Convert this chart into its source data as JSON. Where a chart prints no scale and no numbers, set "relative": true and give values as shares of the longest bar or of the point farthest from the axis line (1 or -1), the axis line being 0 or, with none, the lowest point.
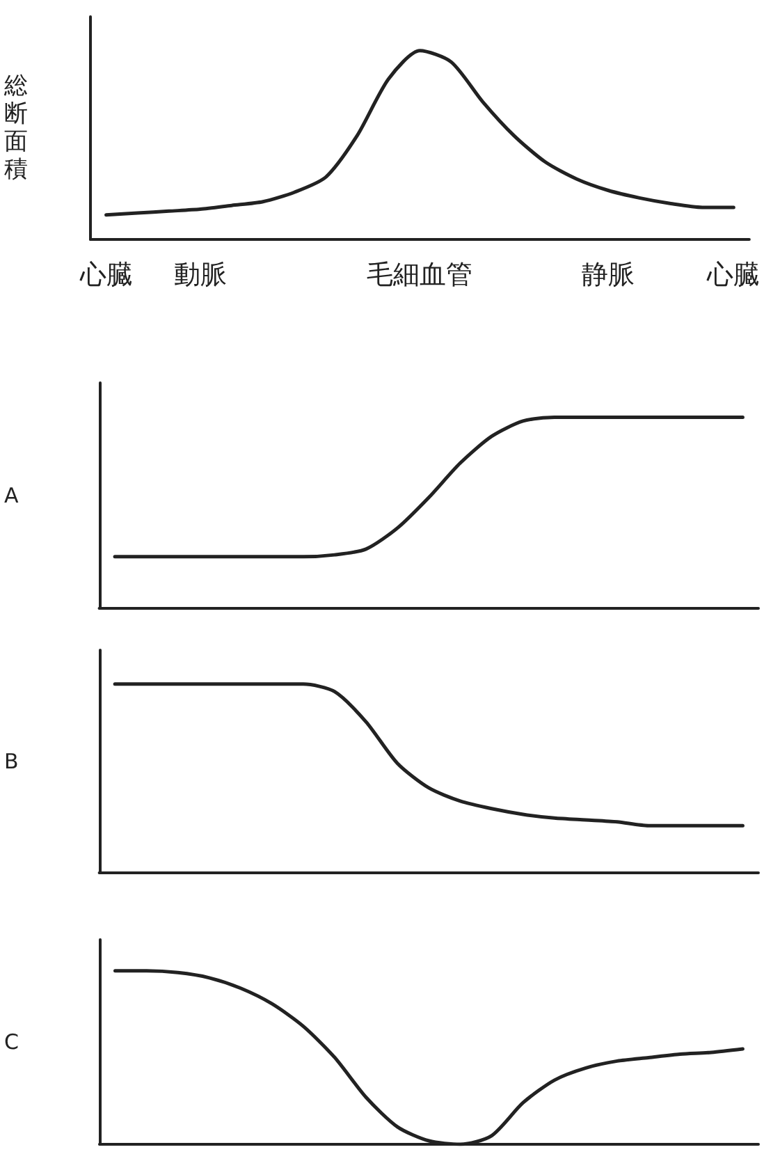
{
  "chart_data": [
    {
      "type": "line",
      "ylabel": "総断面積",
      "relative": true,
      "tick_labels": "x",
      "marker": "none",
      "line_style": "solid",
      "grid": false,
      "categories": [
        "心臓",
        null,
        null,
        "動脈",
        null,
        null,
        null,
        null,
        null,
        null,
        "毛細血管",
        null,
        null,
        null,
        null,
        null,
        "静脈",
        null,
        null,
        null,
        "心臓"
      ],
      "series": [
        {
          "color": "#222222",
          "values": [
            0.13,
            0.14,
            0.15,
            0.16,
            0.18,
            0.2,
            0.25,
            0.33,
            0.55,
            0.85,
            1,
            0.94,
            0.73,
            0.55,
            0.41,
            0.32,
            0.26,
            0.22,
            0.19,
            0.17,
            0.17
          ]
        }
      ]
    },
    {
      "type": "line",
      "ylabel": "A",
      "relative": true,
      "tick_labels": false,
      "marker": "none",
      "line_style": "solid",
      "grid": false,
      "categories": [
        null,
        null,
        null,
        null,
        null,
        null,
        null,
        null,
        null,
        null,
        null,
        null,
        null,
        null,
        null,
        null,
        null,
        null,
        null,
        null,
        null
      ],
      "series": [
        {
          "color": "#222222",
          "values": [
            0.27,
            0.27,
            0.27,
            0.27,
            0.27,
            0.27,
            0.27,
            0.28,
            0.31,
            0.42,
            0.58,
            0.76,
            0.9,
            0.98,
            1,
            1,
            1,
            1,
            1,
            1,
            1
          ]
        }
      ]
    },
    {
      "type": "line",
      "ylabel": "B",
      "relative": true,
      "tick_labels": false,
      "marker": "none",
      "line_style": "solid",
      "grid": false,
      "categories": [
        null,
        null,
        null,
        null,
        null,
        null,
        null,
        null,
        null,
        null,
        null,
        null,
        null,
        null,
        null,
        null,
        null,
        null,
        null,
        null,
        null
      ],
      "series": [
        {
          "color": "#222222",
          "values": [
            1,
            1,
            1,
            1,
            1,
            1,
            1,
            0.96,
            0.8,
            0.58,
            0.45,
            0.38,
            0.34,
            0.31,
            0.29,
            0.28,
            0.27,
            0.25,
            0.25,
            0.25,
            0.25
          ]
        }
      ]
    },
    {
      "type": "line",
      "ylabel": "C",
      "relative": true,
      "tick_labels": false,
      "marker": "none",
      "line_style": "solid",
      "grid": false,
      "categories": [
        null,
        null,
        null,
        null,
        null,
        null,
        null,
        null,
        null,
        null,
        null,
        null,
        null,
        null,
        null,
        null,
        null,
        null,
        null,
        null,
        null
      ],
      "series": [
        {
          "color": "#222222",
          "values": [
            1,
            1,
            0.99,
            0.96,
            0.9,
            0.81,
            0.68,
            0.5,
            0.27,
            0.1,
            0.02,
            0,
            0.05,
            0.24,
            0.37,
            0.44,
            0.48,
            0.5,
            0.52,
            0.53,
            0.55
          ]
        }
      ]
    }
  ]
}
